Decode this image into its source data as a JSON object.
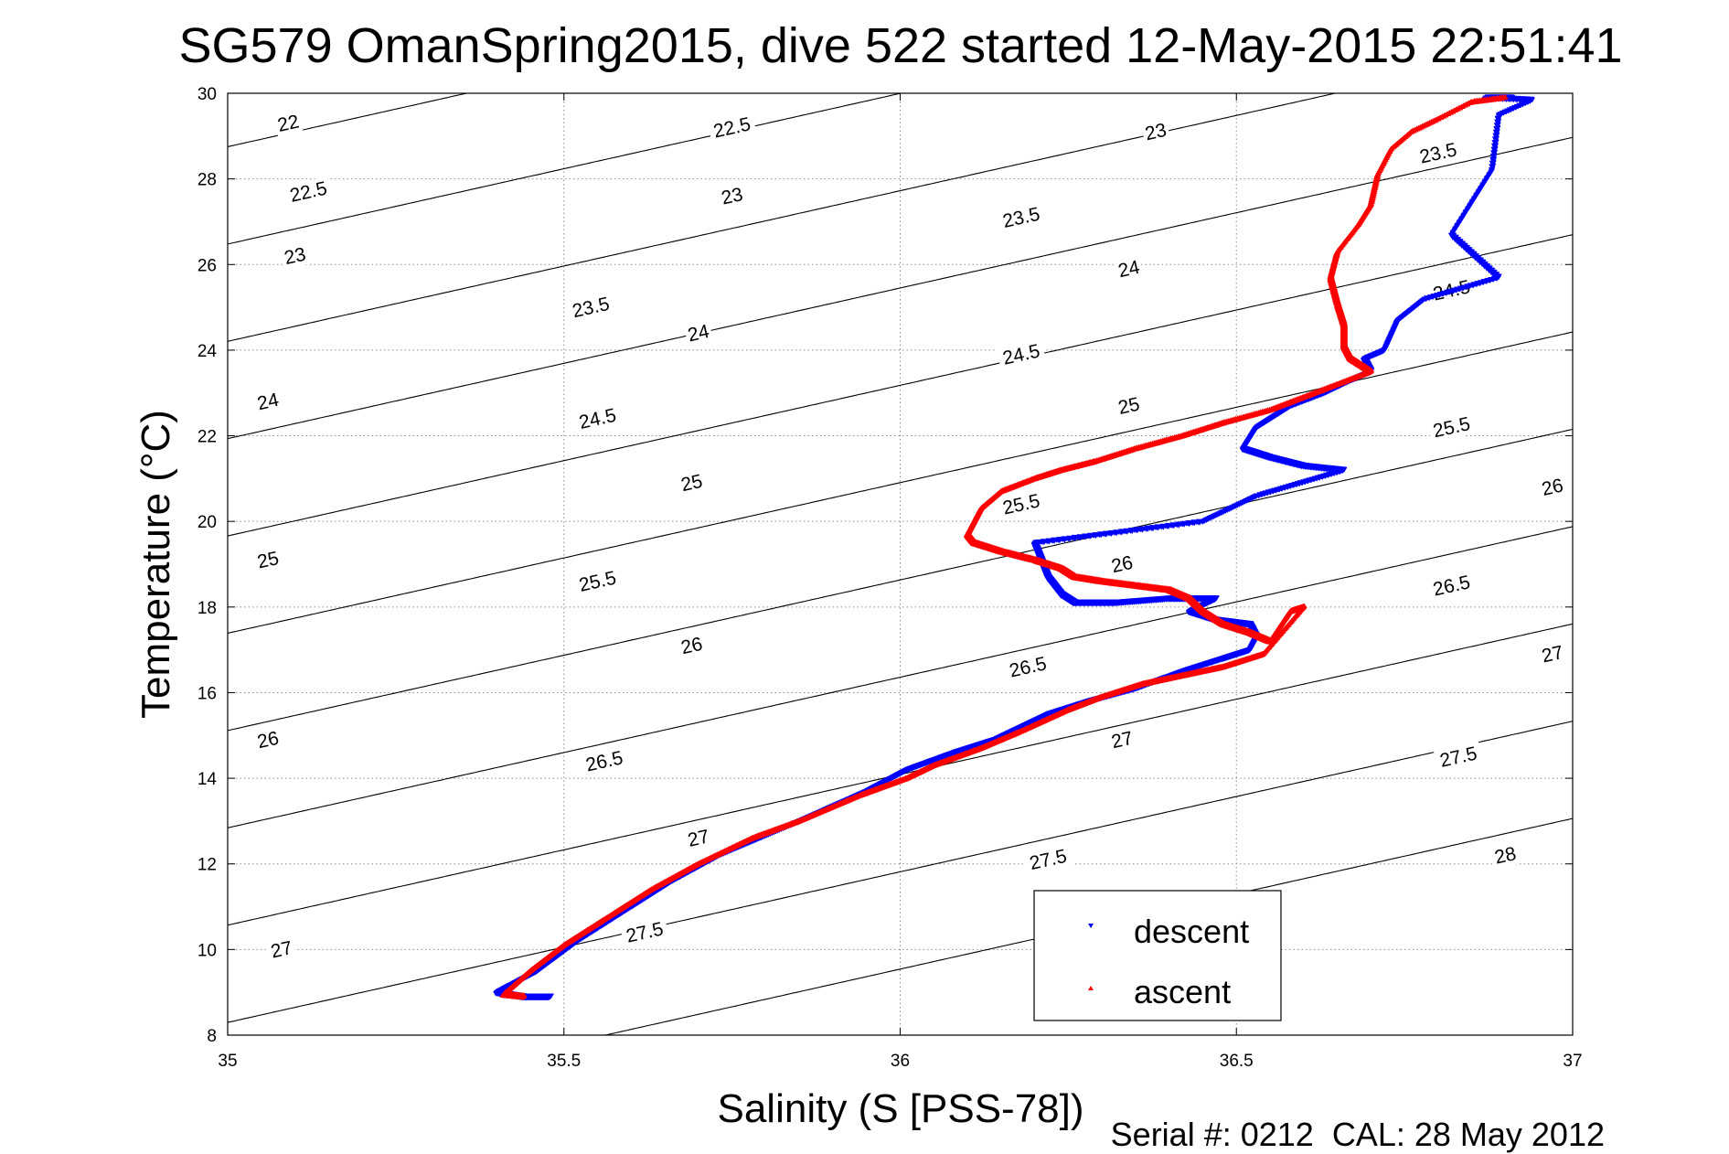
{
  "chart_data": {
    "type": "scatter",
    "title": "SG579 OmanSpring2015, dive 522 started 12-May-2015 22:51:41",
    "xlabel": "Salinity (S [PSS-78])",
    "ylabel": "Temperature (°C)",
    "xlim": [
      35,
      37
    ],
    "ylim": [
      8,
      30
    ],
    "x_ticks": [
      "35",
      "35.5",
      "36",
      "36.5",
      "37"
    ],
    "y_ticks": [
      "8",
      "10",
      "12",
      "14",
      "16",
      "18",
      "20",
      "22",
      "24",
      "26",
      "28",
      "30"
    ],
    "grid": true,
    "legend_position": "bottom-right",
    "footer": "Serial #: 0212  CAL: 28 May 2012",
    "contour_label_values": [
      "22",
      "22.5",
      "23",
      "23.5",
      "24",
      "24.5",
      "25",
      "25.5",
      "26",
      "26.5",
      "27",
      "27.5",
      "28"
    ],
    "contour_labels": [
      {
        "text": "22",
        "s": 35.09,
        "t": 29.3
      },
      {
        "text": "22.5",
        "s": 35.75,
        "t": 29.2
      },
      {
        "text": "23",
        "s": 36.38,
        "t": 29.1
      },
      {
        "text": "22.5",
        "s": 35.12,
        "t": 27.7
      },
      {
        "text": "23",
        "s": 35.75,
        "t": 27.6
      },
      {
        "text": "23.5",
        "s": 36.8,
        "t": 28.6
      },
      {
        "text": "23",
        "s": 35.1,
        "t": 26.2
      },
      {
        "text": "23.5",
        "s": 36.18,
        "t": 27.1
      },
      {
        "text": "23.5",
        "s": 35.54,
        "t": 25.0
      },
      {
        "text": "24",
        "s": 36.34,
        "t": 25.9
      },
      {
        "text": "24",
        "s": 35.7,
        "t": 24.4
      },
      {
        "text": "24.5",
        "s": 36.82,
        "t": 25.4
      },
      {
        "text": "24",
        "s": 35.06,
        "t": 22.8
      },
      {
        "text": "24.5",
        "s": 36.18,
        "t": 23.9
      },
      {
        "text": "24.5",
        "s": 35.55,
        "t": 22.4
      },
      {
        "text": "25",
        "s": 36.34,
        "t": 22.7
      },
      {
        "text": "25.5",
        "s": 36.82,
        "t": 22.2
      },
      {
        "text": "25",
        "s": 35.69,
        "t": 20.9
      },
      {
        "text": "25.5",
        "s": 36.18,
        "t": 20.4
      },
      {
        "text": "26",
        "s": 36.97,
        "t": 20.8
      },
      {
        "text": "25",
        "s": 35.06,
        "t": 19.1
      },
      {
        "text": "26",
        "s": 36.33,
        "t": 19.0
      },
      {
        "text": "25.5",
        "s": 35.55,
        "t": 18.6
      },
      {
        "text": "26.5",
        "s": 36.82,
        "t": 18.5
      },
      {
        "text": "26",
        "s": 35.69,
        "t": 17.1
      },
      {
        "text": "26.5",
        "s": 36.19,
        "t": 16.6
      },
      {
        "text": "27",
        "s": 36.97,
        "t": 16.9
      },
      {
        "text": "26",
        "s": 35.06,
        "t": 14.9
      },
      {
        "text": "27",
        "s": 36.33,
        "t": 14.9
      },
      {
        "text": "26.5",
        "s": 35.56,
        "t": 14.4
      },
      {
        "text": "27.5",
        "s": 36.83,
        "t": 14.5
      },
      {
        "text": "27",
        "s": 35.7,
        "t": 12.6
      },
      {
        "text": "27.5",
        "s": 36.22,
        "t": 12.1
      },
      {
        "text": "28",
        "s": 36.9,
        "t": 12.2
      },
      {
        "text": "27",
        "s": 35.08,
        "t": 10.0
      },
      {
        "text": "27.5",
        "s": 35.62,
        "t": 10.4
      }
    ],
    "series": [
      {
        "name": "descent",
        "color": "#0000ff",
        "marker": "triangle-down",
        "points": [
          [
            36.91,
            29.9
          ],
          [
            36.87,
            29.9
          ],
          [
            36.94,
            29.85
          ],
          [
            36.89,
            29.5
          ],
          [
            36.88,
            28.2
          ],
          [
            36.82,
            26.7
          ],
          [
            36.89,
            25.7
          ],
          [
            36.78,
            25.2
          ],
          [
            36.74,
            24.7
          ],
          [
            36.72,
            24.0
          ],
          [
            36.69,
            23.8
          ],
          [
            36.7,
            23.5
          ],
          [
            36.67,
            23.3
          ],
          [
            36.63,
            23.0
          ],
          [
            36.58,
            22.7
          ],
          [
            36.56,
            22.5
          ],
          [
            36.53,
            22.2
          ],
          [
            36.51,
            21.7
          ],
          [
            36.55,
            21.5
          ],
          [
            36.6,
            21.3
          ],
          [
            36.66,
            21.2
          ],
          [
            36.53,
            20.6
          ],
          [
            36.45,
            20.0
          ],
          [
            36.2,
            19.5
          ],
          [
            36.21,
            19.1
          ],
          [
            36.22,
            18.7
          ],
          [
            36.24,
            18.3
          ],
          [
            36.26,
            18.1
          ],
          [
            36.32,
            18.1
          ],
          [
            36.4,
            18.2
          ],
          [
            36.47,
            18.2
          ],
          [
            36.43,
            17.9
          ],
          [
            36.47,
            17.7
          ],
          [
            36.52,
            17.6
          ],
          [
            36.53,
            17.3
          ],
          [
            36.52,
            17.0
          ],
          [
            36.48,
            16.8
          ],
          [
            36.42,
            16.5
          ],
          [
            36.35,
            16.1
          ],
          [
            36.28,
            15.8
          ],
          [
            36.22,
            15.5
          ],
          [
            36.18,
            15.2
          ],
          [
            36.14,
            14.9
          ],
          [
            36.08,
            14.6
          ],
          [
            36.01,
            14.2
          ],
          [
            35.95,
            13.7
          ],
          [
            35.85,
            13.0
          ],
          [
            35.73,
            12.2
          ],
          [
            35.66,
            11.6
          ],
          [
            35.6,
            11.0
          ],
          [
            35.52,
            10.2
          ],
          [
            35.46,
            9.5
          ],
          [
            35.4,
            9.0
          ],
          [
            35.44,
            8.9
          ],
          [
            35.48,
            8.9
          ]
        ]
      },
      {
        "name": "ascent",
        "color": "#ff0000",
        "marker": "triangle-up",
        "points": [
          [
            36.9,
            29.9
          ],
          [
            36.85,
            29.8
          ],
          [
            36.8,
            29.4
          ],
          [
            36.76,
            29.1
          ],
          [
            36.73,
            28.7
          ],
          [
            36.71,
            28.1
          ],
          [
            36.7,
            27.4
          ],
          [
            36.68,
            26.9
          ],
          [
            36.65,
            26.3
          ],
          [
            36.64,
            25.7
          ],
          [
            36.65,
            25.1
          ],
          [
            36.66,
            24.6
          ],
          [
            36.66,
            24.1
          ],
          [
            36.67,
            23.8
          ],
          [
            36.7,
            23.5
          ],
          [
            36.65,
            23.2
          ],
          [
            36.6,
            22.9
          ],
          [
            36.55,
            22.6
          ],
          [
            36.48,
            22.3
          ],
          [
            36.42,
            22.0
          ],
          [
            36.35,
            21.7
          ],
          [
            36.29,
            21.4
          ],
          [
            36.24,
            21.2
          ],
          [
            36.2,
            21.0
          ],
          [
            36.15,
            20.7
          ],
          [
            36.12,
            20.3
          ],
          [
            36.11,
            20.0
          ],
          [
            36.1,
            19.7
          ],
          [
            36.11,
            19.5
          ],
          [
            36.15,
            19.3
          ],
          [
            36.2,
            19.1
          ],
          [
            36.24,
            18.9
          ],
          [
            36.26,
            18.7
          ],
          [
            36.3,
            18.6
          ],
          [
            36.35,
            18.5
          ],
          [
            36.4,
            18.4
          ],
          [
            36.43,
            18.2
          ],
          [
            36.45,
            17.9
          ],
          [
            36.48,
            17.6
          ],
          [
            36.52,
            17.4
          ],
          [
            36.55,
            17.2
          ],
          [
            36.58,
            17.9
          ],
          [
            36.6,
            18.0
          ],
          [
            36.54,
            16.9
          ],
          [
            36.48,
            16.6
          ],
          [
            36.42,
            16.4
          ],
          [
            36.36,
            16.2
          ],
          [
            36.3,
            15.9
          ],
          [
            36.25,
            15.6
          ],
          [
            36.18,
            15.1
          ],
          [
            36.12,
            14.7
          ],
          [
            36.05,
            14.3
          ],
          [
            36.01,
            14.0
          ],
          [
            35.94,
            13.6
          ],
          [
            35.85,
            13.0
          ],
          [
            35.78,
            12.6
          ],
          [
            35.7,
            12.0
          ],
          [
            35.63,
            11.4
          ],
          [
            35.56,
            10.7
          ],
          [
            35.5,
            10.1
          ],
          [
            35.45,
            9.5
          ],
          [
            35.41,
            8.95
          ],
          [
            35.44,
            8.9
          ]
        ]
      }
    ]
  }
}
